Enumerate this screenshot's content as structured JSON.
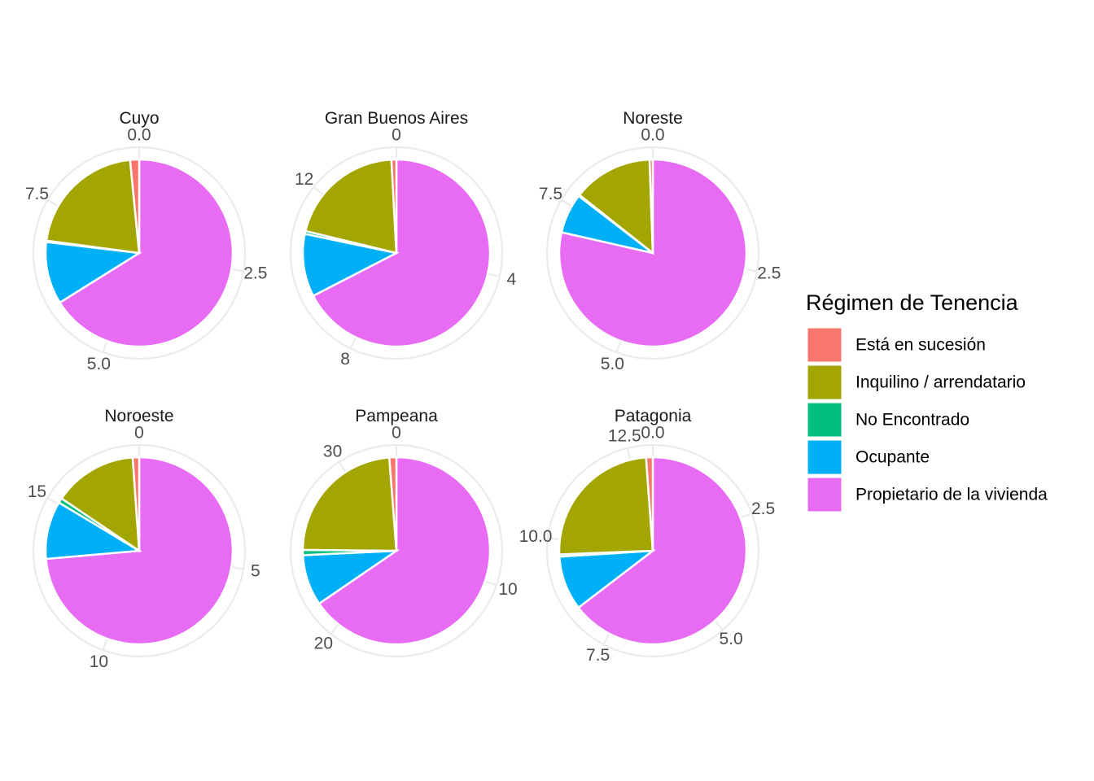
{
  "chart_data": {
    "type": "pie",
    "legend": {
      "title": "Régimen de Tenencia",
      "placement": "right",
      "entries": [
        {
          "label": "Está en sucesión",
          "color": "#F8766D"
        },
        {
          "label": "Inquilino / arrendatario",
          "color": "#A3A500"
        },
        {
          "label": "No Encontrado",
          "color": "#00BF7D"
        },
        {
          "label": "Ocupante",
          "color": "#00B0F6"
        },
        {
          "label": "Propietario de la vivienda",
          "color": "#E76BF3"
        }
      ]
    },
    "facets": [
      {
        "title": "Cuyo",
        "total": 9.0,
        "values": [
          0.14,
          1.92,
          0.02,
          0.97,
          5.95
        ],
        "ticks": [
          {
            "value": 0.0,
            "label": "0.0"
          },
          {
            "value": 2.5,
            "label": "2.5"
          },
          {
            "value": 5.0,
            "label": "5.0"
          },
          {
            "value": 7.5,
            "label": "7.5"
          }
        ]
      },
      {
        "title": "Gran Buenos Aires",
        "total": 14.0,
        "values": [
          0.12,
          2.85,
          0.07,
          1.52,
          9.44
        ],
        "ticks": [
          {
            "value": 0,
            "label": "0"
          },
          {
            "value": 4,
            "label": "4"
          },
          {
            "value": 8,
            "label": "8"
          },
          {
            "value": 12,
            "label": "12"
          }
        ]
      },
      {
        "title": "Noreste",
        "total": 9.0,
        "values": [
          0.05,
          1.24,
          0.02,
          0.62,
          7.07
        ],
        "ticks": [
          {
            "value": 0.0,
            "label": "0.0"
          },
          {
            "value": 2.5,
            "label": "2.5"
          },
          {
            "value": 5.0,
            "label": "5.0"
          },
          {
            "value": 7.5,
            "label": "7.5"
          }
        ]
      },
      {
        "title": "Noroeste",
        "total": 18.0,
        "values": [
          0.2,
          2.6,
          0.15,
          1.8,
          13.25
        ],
        "ticks": [
          {
            "value": 0,
            "label": "0"
          },
          {
            "value": 5,
            "label": "5"
          },
          {
            "value": 10,
            "label": "10"
          },
          {
            "value": 15,
            "label": "15"
          }
        ]
      },
      {
        "title": "Pampeana",
        "total": 33.0,
        "values": [
          0.4,
          7.8,
          0.3,
          2.9,
          21.6
        ],
        "ticks": [
          {
            "value": 0,
            "label": "0"
          },
          {
            "value": 10,
            "label": "10"
          },
          {
            "value": 20,
            "label": "20"
          },
          {
            "value": 30,
            "label": "30"
          }
        ]
      },
      {
        "title": "Patagonia",
        "total": 13.0,
        "values": [
          0.15,
          3.18,
          0.05,
          1.22,
          8.4
        ],
        "ticks": [
          {
            "value": 0.0,
            "label": "0.0"
          },
          {
            "value": 2.5,
            "label": "2.5"
          },
          {
            "value": 5.0,
            "label": "5.0"
          },
          {
            "value": 7.5,
            "label": "7.5"
          },
          {
            "value": 10.0,
            "label": "10.0"
          },
          {
            "value": 12.5,
            "label": "12.5"
          }
        ]
      }
    ]
  }
}
